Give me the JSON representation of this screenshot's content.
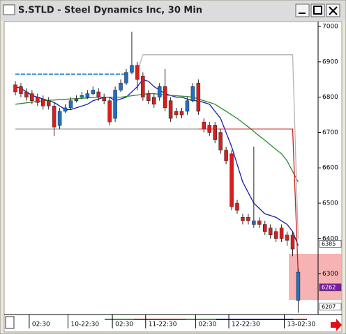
{
  "window_title": "S.STLD - Steel Dynamics Inc, 30 Min",
  "chart_data": {
    "type": "candlestick",
    "categories": [
      null,
      null,
      null,
      "02:30",
      null,
      null,
      null,
      null,
      null,
      null,
      "10-22:30",
      null,
      null,
      null,
      null,
      null,
      null,
      null,
      "02:30",
      null,
      null,
      null,
      null,
      null,
      "11-22:30",
      null,
      null,
      null,
      null,
      null,
      null,
      null,
      null,
      "02:30",
      null,
      null,
      null,
      null,
      null,
      "12-22:30",
      null,
      null,
      null,
      null,
      null,
      null,
      null,
      null,
      null,
      "13-02:30",
      null,
      null
    ],
    "open": [
      6835,
      6830,
      6815,
      6810,
      6800,
      6795,
      6790,
      6775,
      6720,
      6760,
      6770,
      6790,
      6800,
      6800,
      6810,
      6815,
      6800,
      6790,
      6740,
      6820,
      6840,
      6870,
      6890,
      6860,
      6810,
      6800,
      6800,
      6830,
      6790,
      6760,
      6760,
      6760,
      6790,
      6840,
      6730,
      6720,
      6720,
      6700,
      6650,
      6640,
      6500,
      6460,
      6460,
      6440,
      6450,
      6440,
      6430,
      6420,
      6430,
      6410,
      6410,
      6225
    ],
    "high": [
      6845,
      6840,
      6825,
      6820,
      6810,
      6805,
      6800,
      6785,
      6770,
      6780,
      6800,
      6805,
      6815,
      6820,
      6830,
      6825,
      6810,
      6800,
      6830,
      6850,
      6880,
      6985,
      6900,
      6870,
      6820,
      6810,
      6840,
      6880,
      6800,
      6770,
      6770,
      6800,
      6840,
      6850,
      6740,
      6730,
      6730,
      6710,
      6660,
      6650,
      6510,
      6470,
      6470,
      6660,
      6460,
      6450,
      6440,
      6430,
      6440,
      6420,
      6420,
      6315
    ],
    "low": [
      6805,
      6800,
      6790,
      6780,
      6775,
      6765,
      6765,
      6690,
      6710,
      6755,
      6765,
      6785,
      6795,
      6795,
      6805,
      6790,
      6780,
      6720,
      6730,
      6815,
      6835,
      6865,
      6820,
      6790,
      6780,
      6770,
      6790,
      6760,
      6730,
      6740,
      6740,
      6750,
      6785,
      6750,
      6700,
      6690,
      6670,
      6640,
      6610,
      6480,
      6470,
      6440,
      6440,
      6430,
      6430,
      6410,
      6400,
      6390,
      6390,
      6380,
      6350,
      6190
    ],
    "close": [
      6815,
      6810,
      6800,
      6790,
      6785,
      6775,
      6775,
      6715,
      6760,
      6770,
      6790,
      6795,
      6805,
      6810,
      6820,
      6800,
      6790,
      6730,
      6820,
      6840,
      6870,
      6890,
      6850,
      6800,
      6790,
      6780,
      6830,
      6770,
      6740,
      6750,
      6750,
      6790,
      6830,
      6760,
      6710,
      6700,
      6680,
      6650,
      6620,
      6490,
      6480,
      6450,
      6450,
      6450,
      6440,
      6420,
      6410,
      6400,
      6400,
      6395,
      6370,
      6305
    ],
    "up_color": "#1f6fc5",
    "down_color": "#d81e1e",
    "lines": [
      {
        "color": "#1a1aa8",
        "values": [
          6830,
          6825,
          6815,
          6805,
          6800,
          6795,
          6790,
          6785,
          6775,
          6765,
          6765,
          6770,
          6775,
          6780,
          6790,
          6795,
          6800,
          6800,
          6790,
          6795,
          6800,
          6815,
          6830,
          6850,
          6845,
          6830,
          6820,
          6810,
          6805,
          6800,
          6800,
          6795,
          6790,
          6790,
          6785,
          6780,
          6760,
          6740,
          6700,
          6660,
          6610,
          6560,
          6530,
          6500,
          6485,
          6470,
          6465,
          6460,
          6450,
          6440,
          6420,
          6380
        ]
      },
      {
        "color": "#2a8a2a",
        "values": [
          6780,
          6782,
          6784,
          6786,
          6788,
          6790,
          6791,
          6792,
          6793,
          6794,
          6795,
          6796,
          6797,
          6798,
          6799,
          6800,
          6800,
          6800,
          6800,
          6800,
          6802,
          6804,
          6806,
          6808,
          6810,
          6810,
          6808,
          6806,
          6805,
          6804,
          6803,
          6802,
          6800,
          6795,
          6790,
          6785,
          6780,
          6770,
          6760,
          6750,
          6740,
          6728,
          6716,
          6703,
          6690,
          6678,
          6665,
          6652,
          6640,
          6620,
          6590,
          6560
        ]
      },
      {
        "color": "#b4b4b4",
        "values": [
          null,
          null,
          null,
          null,
          null,
          null,
          null,
          null,
          null,
          null,
          null,
          null,
          null,
          null,
          null,
          null,
          null,
          null,
          null,
          null,
          null,
          null,
          6870,
          6920,
          6920,
          6920,
          6920,
          6920,
          6920,
          6920,
          6920,
          6920,
          6920,
          6920,
          6920,
          6920,
          6920,
          6920,
          6920,
          6920,
          6920,
          6920,
          6920,
          6920,
          6920,
          6920,
          6920,
          6920,
          6920,
          6920,
          6920,
          6400
        ]
      },
      {
        "color": "#c81e1e",
        "values": [
          null,
          null,
          null,
          null,
          null,
          null,
          null,
          null,
          null,
          null,
          null,
          null,
          null,
          null,
          null,
          null,
          null,
          null,
          null,
          null,
          null,
          null,
          null,
          null,
          null,
          null,
          null,
          null,
          null,
          null,
          null,
          null,
          null,
          6710,
          6710,
          6710,
          6710,
          6710,
          6710,
          6710,
          6710,
          6710,
          6710,
          6710,
          6710,
          6710,
          6710,
          6710,
          6710,
          6710,
          6710,
          6300
        ]
      },
      {
        "color": "#7a7a7a",
        "values": [
          6710,
          6710,
          6710,
          6710,
          6710,
          6710,
          6710,
          6710,
          6710,
          6710,
          6710,
          6710,
          6710,
          6710,
          6710,
          6710,
          6710,
          6710,
          6710,
          6710,
          6710,
          6710,
          6710,
          6710,
          6710,
          6710,
          6710,
          6710,
          6710,
          6710,
          6710,
          6710,
          6710,
          6710,
          null,
          null,
          null,
          null,
          null,
          null,
          null,
          null,
          null,
          null,
          null,
          null,
          null,
          null,
          null,
          null,
          null,
          null
        ]
      },
      {
        "color": "#2d7fd0",
        "dashed": true,
        "values": [
          6865,
          6865,
          6865,
          6865,
          6865,
          6865,
          6865,
          6865,
          6865,
          6865,
          6865,
          6865,
          6865,
          6865,
          6865,
          6865,
          6865,
          6865,
          6865,
          6865,
          6865,
          null,
          null,
          null,
          null,
          null,
          null,
          null,
          null,
          null,
          null,
          null,
          null,
          null,
          null,
          null,
          null,
          null,
          null,
          null,
          null,
          null,
          null,
          null,
          null,
          null,
          null,
          null,
          null,
          null,
          null,
          null
        ]
      }
    ],
    "price_flags": [
      {
        "value": 6385,
        "color": "#ffffff"
      },
      {
        "value": 6262,
        "color": "#7b1fa2"
      },
      {
        "value": 6207,
        "color": "#ffffff"
      }
    ],
    "ylim": [
      6185,
      7010
    ],
    "yticks": [
      6300,
      6400,
      6500,
      6600,
      6700,
      6800,
      6900,
      7000
    ],
    "grid": false
  }
}
